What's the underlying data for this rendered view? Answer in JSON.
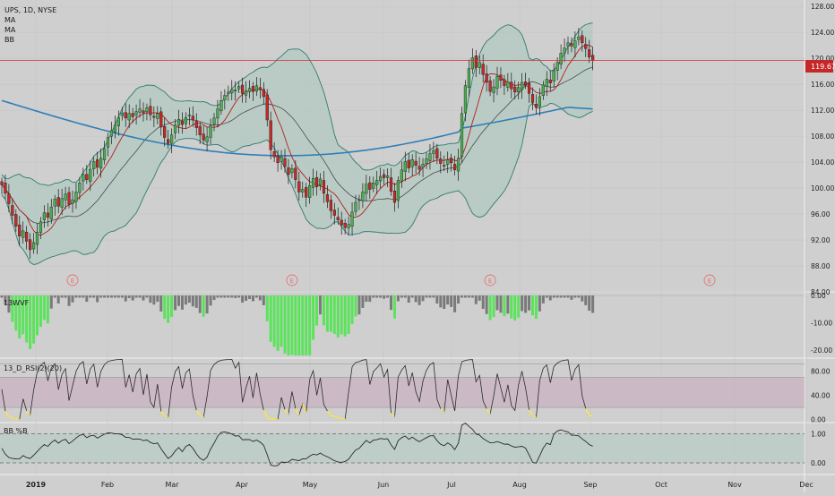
{
  "header": {
    "symbol_line": "UPS, 1D, NYSE",
    "indicators": [
      "MA",
      "MA",
      "BB"
    ]
  },
  "colors": {
    "background": "#cfcfcf",
    "up_candle": "#4caf50",
    "down_candle": "#c62828",
    "ma_long": "#2f7fb8",
    "ma_short": "#b71c1c",
    "bb_line": "#2e7d6e",
    "bb_fill": "#a9c9be",
    "price_line": "#d32f2f",
    "wvf_green": "#5be35b",
    "wvf_gray": "#7a7a7a",
    "rsi_band": "#c8a9c0",
    "rsi_yellow": "#ffeb3b",
    "bbpct_band": "#b3cbc3"
  },
  "chart_data": [
    {
      "type": "candlestick",
      "title": "UPS, 1D, NYSE",
      "price_label": "119.67",
      "last_price": 119.67,
      "y_ticks": [
        "128.00",
        "124.00",
        "120.00",
        "116.00",
        "112.00",
        "108.00",
        "104.00",
        "100.00",
        "96.00",
        "92.00",
        "88.00",
        "84.00"
      ],
      "x_ticks": [
        "2019",
        "Feb",
        "Mar",
        "Apr",
        "May",
        "Jun",
        "Jul",
        "Aug",
        "Sep",
        "Oct",
        "Nov",
        "Dec"
      ],
      "ylim": [
        84,
        129
      ],
      "earnings_marker": "E",
      "earnings_dates": [
        "2019-01-30",
        "2019-04-25",
        "2019-07-23",
        "2019-10-22"
      ],
      "close": [
        100.5,
        99.2,
        97.6,
        95.8,
        94.1,
        92.6,
        93.4,
        91.8,
        90.5,
        91.6,
        93.2,
        94.8,
        96.2,
        95.5,
        97.1,
        98.3,
        97.2,
        98.4,
        99.1,
        97.5,
        98.2,
        99.4,
        100.8,
        102.1,
        101.3,
        102.9,
        104.1,
        103.2,
        104.6,
        106.1,
        107.8,
        108.9,
        109.7,
        110.9,
        111.6,
        110.8,
        111.5,
        111.0,
        111.8,
        112.2,
        111.6,
        112.4,
        111.3,
        110.9,
        111.5,
        109.4,
        107.8,
        106.9,
        108.2,
        109.7,
        110.6,
        109.8,
        110.9,
        111.3,
        110.5,
        109.3,
        108.2,
        107.4,
        107.9,
        109.6,
        110.8,
        112.2,
        113.5,
        114.3,
        114.8,
        115.2,
        115.1,
        115.7,
        114.6,
        115.0,
        115.4,
        114.9,
        115.8,
        115.2,
        114.1,
        110.5,
        105.9,
        104.8,
        103.9,
        104.8,
        103.3,
        102.1,
        103.0,
        101.3,
        99.4,
        99.8,
        98.6,
        100.4,
        101.5,
        100.2,
        101.4,
        99.2,
        97.9,
        96.5,
        95.8,
        95.1,
        94.3,
        93.9,
        94.4,
        96.3,
        97.8,
        98.2,
        99.4,
        100.6,
        99.8,
        100.8,
        101.2,
        101.8,
        101.6,
        101.9,
        99.5,
        97.8,
        101.2,
        102.8,
        104.1,
        103.1,
        104.4,
        103.5,
        102.9,
        103.7,
        104.5,
        105.3,
        105.8,
        104.6,
        103.8,
        103.5,
        104.4,
        103.9,
        102.8,
        104.6,
        111.5,
        115.8,
        118.4,
        120.1,
        118.6,
        119.4,
        117.5,
        116.3,
        114.9,
        115.6,
        117.2,
        116.6,
        115.8,
        116.4,
        115.3,
        114.8,
        115.5,
        116.3,
        115.9,
        114.6,
        113.2,
        112.4,
        114.1,
        115.9,
        116.8,
        116.2,
        118.1,
        119.4,
        120.8,
        121.6,
        122.4,
        121.9,
        122.7,
        123.3,
        122.4,
        121.5,
        120.2,
        119.67
      ]
    },
    {
      "type": "bar",
      "title": "13WVF",
      "y_ticks": [
        "0.00",
        "-10.00",
        "-20.00"
      ],
      "ylim": [
        -23,
        1
      ]
    },
    {
      "type": "line",
      "title": "13_D_RSI(2)(20)",
      "y_ticks": [
        "80.00",
        "40.00",
        "0.00"
      ],
      "ylim": [
        -5,
        100
      ]
    },
    {
      "type": "line",
      "title": "BB %B",
      "y_ticks": [
        "1.00",
        "0.00"
      ],
      "ylim": [
        -0.4,
        1.35
      ]
    }
  ]
}
